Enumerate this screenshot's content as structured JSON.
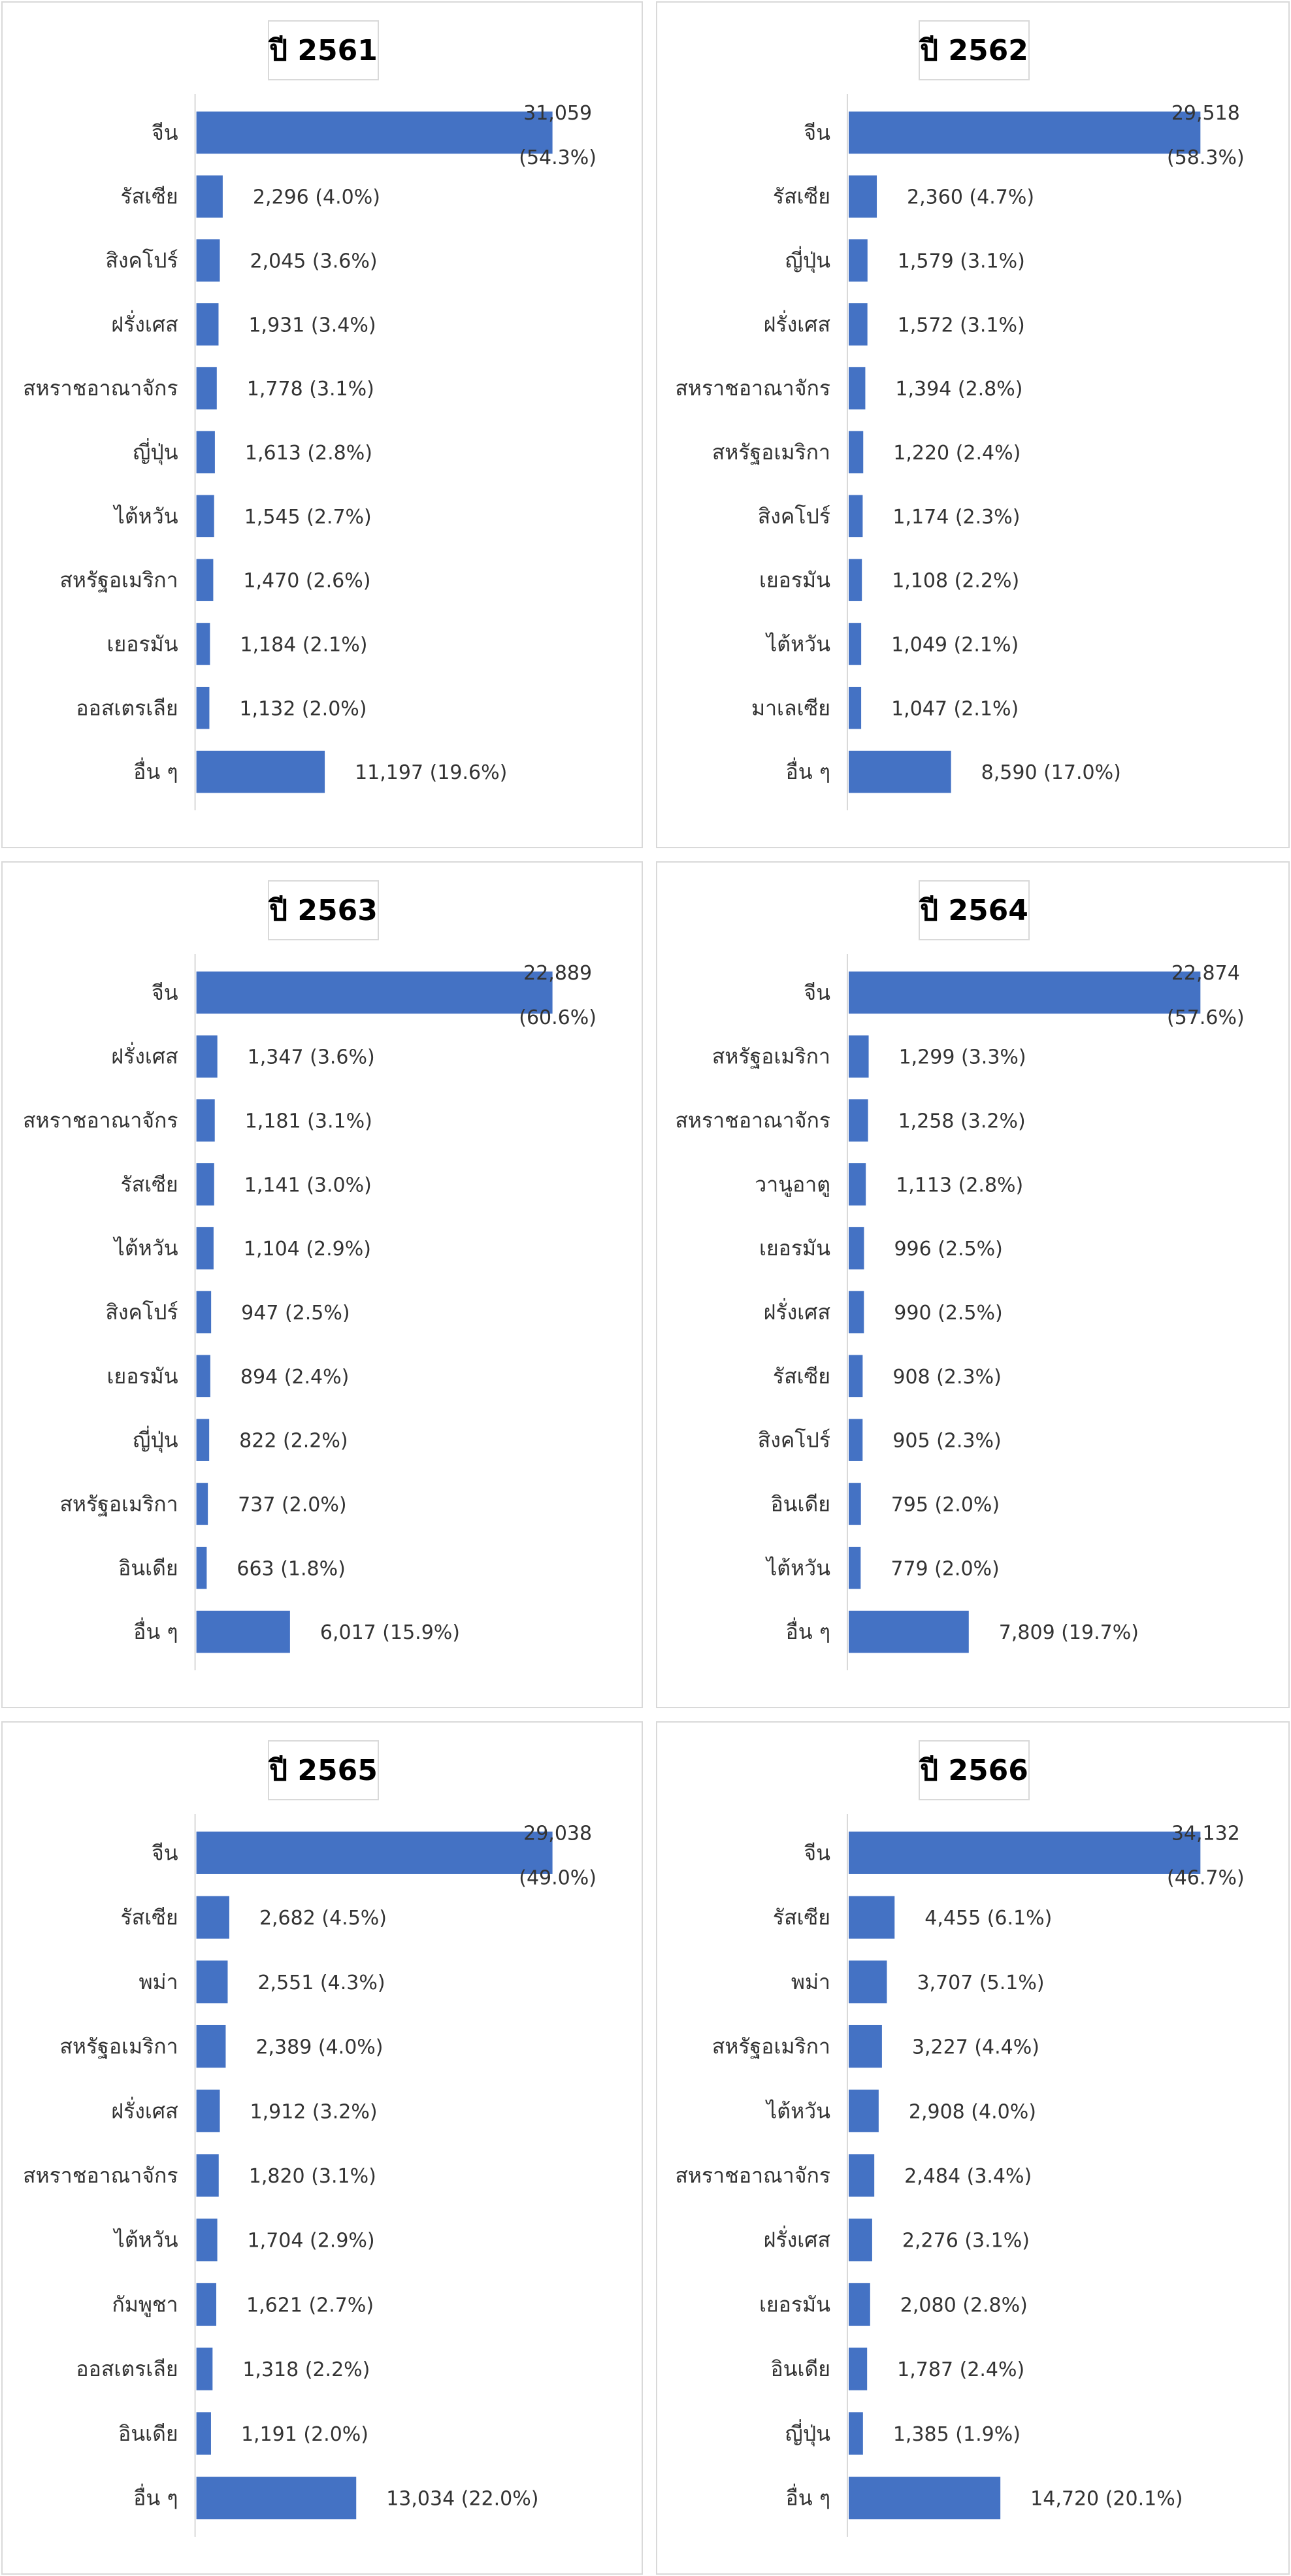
{
  "chart_data": [
    {
      "type": "bar",
      "title": "ปี 2561",
      "categories": [
        "จีน",
        "รัสเซีย",
        "สิงคโปร์",
        "ฝรั่งเศส",
        "สหราชอาณาจักร",
        "ญี่ปุ่น",
        "ไต้หวัน",
        "สหรัฐอเมริกา",
        "เยอรมัน",
        "ออสเตรเลีย",
        "อื่น ๆ"
      ],
      "values": [
        31059,
        2296,
        2045,
        1931,
        1778,
        1613,
        1545,
        1470,
        1184,
        1132,
        11197
      ],
      "value_labels": [
        "31,059",
        "2,296",
        "2,045",
        "1,931",
        "1,778",
        "1,613",
        "1,545",
        "1,470",
        "1,184",
        "1,132",
        "11,197"
      ],
      "percent_labels": [
        "(54.3%)",
        "(4.0%)",
        "(3.6%)",
        "(3.4%)",
        "(3.1%)",
        "(2.8%)",
        "(2.7%)",
        "(2.6%)",
        "(2.1%)",
        "(2.0%)",
        "(19.6%)"
      ]
    },
    {
      "type": "bar",
      "title": "ปี 2562",
      "categories": [
        "จีน",
        "รัสเซีย",
        "ญี่ปุ่น",
        "ฝรั่งเศส",
        "สหราชอาณาจักร",
        "สหรัฐอเมริกา",
        "สิงคโปร์",
        "เยอรมัน",
        "ไต้หวัน",
        "มาเลเซีย",
        "อื่น ๆ"
      ],
      "values": [
        29518,
        2360,
        1579,
        1572,
        1394,
        1220,
        1174,
        1108,
        1049,
        1047,
        8590
      ],
      "value_labels": [
        "29,518",
        "2,360",
        "1,579",
        "1,572",
        "1,394",
        "1,220",
        "1,174",
        "1,108",
        "1,049",
        "1,047",
        "8,590"
      ],
      "percent_labels": [
        "(58.3%)",
        "(4.7%)",
        "(3.1%)",
        "(3.1%)",
        "(2.8%)",
        "(2.4%)",
        "(2.3%)",
        "(2.2%)",
        "(2.1%)",
        "(2.1%)",
        "(17.0%)"
      ]
    },
    {
      "type": "bar",
      "title": "ปี 2563",
      "categories": [
        "จีน",
        "ฝรั่งเศส",
        "สหราชอาณาจักร",
        "รัสเซีย",
        "ไต้หวัน",
        "สิงคโปร์",
        "เยอรมัน",
        "ญี่ปุ่น",
        "สหรัฐอเมริกา",
        "อินเดีย",
        "อื่น ๆ"
      ],
      "values": [
        22889,
        1347,
        1181,
        1141,
        1104,
        947,
        894,
        822,
        737,
        663,
        6017
      ],
      "value_labels": [
        "22,889",
        "1,347",
        "1,181",
        "1,141",
        "1,104",
        "947",
        "894",
        "822",
        "737",
        "663",
        "6,017"
      ],
      "percent_labels": [
        "(60.6%)",
        "(3.6%)",
        "(3.1%)",
        "(3.0%)",
        "(2.9%)",
        "(2.5%)",
        "(2.4%)",
        "(2.2%)",
        "(2.0%)",
        "(1.8%)",
        "(15.9%)"
      ]
    },
    {
      "type": "bar",
      "title": "ปี 2564",
      "categories": [
        "จีน",
        "สหรัฐอเมริกา",
        "สหราชอาณาจักร",
        "วานูอาตู",
        "เยอรมัน",
        "ฝรั่งเศส",
        "รัสเซีย",
        "สิงคโปร์",
        "อินเดีย",
        "ไต้หวัน",
        "อื่น ๆ"
      ],
      "values": [
        22874,
        1299,
        1258,
        1113,
        996,
        990,
        908,
        905,
        795,
        779,
        7809
      ],
      "value_labels": [
        "22,874",
        "1,299",
        "1,258",
        "1,113",
        "996",
        "990",
        "908",
        "905",
        "795",
        "779",
        "7,809"
      ],
      "percent_labels": [
        "(57.6%)",
        "(3.3%)",
        "(3.2%)",
        "(2.8%)",
        "(2.5%)",
        "(2.5%)",
        "(2.3%)",
        "(2.3%)",
        "(2.0%)",
        "(2.0%)",
        "(19.7%)"
      ]
    },
    {
      "type": "bar",
      "title": "ปี 2565",
      "categories": [
        "จีน",
        "รัสเซีย",
        "พม่า",
        "สหรัฐอเมริกา",
        "ฝรั่งเศส",
        "สหราชอาณาจักร",
        "ไต้หวัน",
        "กัมพูชา",
        "ออสเตรเลีย",
        "อินเดีย",
        "อื่น ๆ"
      ],
      "values": [
        29038,
        2682,
        2551,
        2389,
        1912,
        1820,
        1704,
        1621,
        1318,
        1191,
        13034
      ],
      "value_labels": [
        "29,038",
        "2,682",
        "2,551",
        "2,389",
        "1,912",
        "1,820",
        "1,704",
        "1,621",
        "1,318",
        "1,191",
        "13,034"
      ],
      "percent_labels": [
        "(49.0%)",
        "(4.5%)",
        "(4.3%)",
        "(4.0%)",
        "(3.2%)",
        "(3.1%)",
        "(2.9%)",
        "(2.7%)",
        "(2.2%)",
        "(2.0%)",
        "(22.0%)"
      ]
    },
    {
      "type": "bar",
      "title": "ปี 2566",
      "categories": [
        "จีน",
        "รัสเซีย",
        "พม่า",
        "สหรัฐอเมริกา",
        "ไต้หวัน",
        "สหราชอาณาจักร",
        "ฝรั่งเศส",
        "เยอรมัน",
        "อินเดีย",
        "ญี่ปุ่น",
        "อื่น ๆ"
      ],
      "values": [
        34132,
        4455,
        3707,
        3227,
        2908,
        2484,
        2276,
        2080,
        1787,
        1385,
        14720
      ],
      "value_labels": [
        "34,132",
        "4,455",
        "3,707",
        "3,227",
        "2,908",
        "2,484",
        "2,276",
        "2,080",
        "1,787",
        "1,385",
        "14,720"
      ],
      "percent_labels": [
        "(46.7%)",
        "(6.1%)",
        "(5.1%)",
        "(4.4%)",
        "(4.0%)",
        "(3.4%)",
        "(3.1%)",
        "(2.8%)",
        "(2.4%)",
        "(1.9%)",
        "(20.1%)"
      ]
    }
  ],
  "colors": {
    "bar": "#4472c4",
    "axis": "#d9d9d9",
    "text": "#333333"
  }
}
